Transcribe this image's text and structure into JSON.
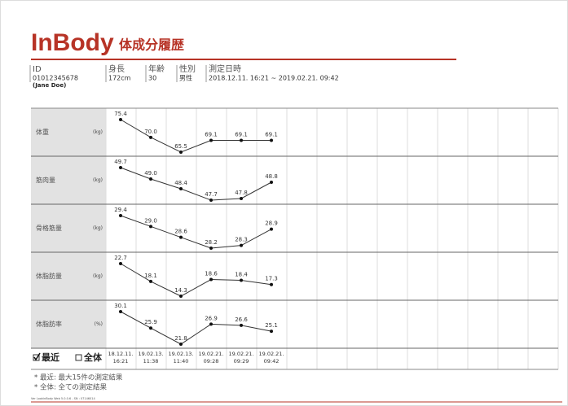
{
  "header": {
    "brand": "InBody",
    "title": "体成分履歴"
  },
  "info": [
    {
      "label": "ID",
      "value": "01012345678",
      "extra": "(Jane Doe)"
    },
    {
      "label": "身長",
      "value": "172cm"
    },
    {
      "label": "年齢",
      "value": "30"
    },
    {
      "label": "性別",
      "value": "男性"
    },
    {
      "label": "測定日時",
      "value": "2018.12.11. 16:21 ~ 2019.02.21. 09:42"
    }
  ],
  "rows": [
    {
      "name": "体重",
      "unit": "(kg)",
      "values": [
        75.4,
        70,
        65.5,
        69.1,
        69.1,
        69.1
      ],
      "value_labels": [
        "75.4",
        "70.0",
        "65.5",
        "69.1",
        "69.1",
        "69.1"
      ]
    },
    {
      "name": "筋肉量",
      "unit": "(kg)",
      "values": [
        49.7,
        49,
        48.4,
        47.7,
        47.8,
        48.8
      ],
      "value_labels": [
        "49.7",
        "49.0",
        "48.4",
        "47.7",
        "47.8",
        "48.8"
      ]
    },
    {
      "name": "骨格筋量",
      "unit": "(kg)",
      "values": [
        29.4,
        29,
        28.6,
        28.2,
        28.3,
        28.9
      ],
      "value_labels": [
        "29.4",
        "29.0",
        "28.6",
        "28.2",
        "28.3",
        "28.9"
      ]
    },
    {
      "name": "体脂肪量",
      "unit": "(kg)",
      "values": [
        22.7,
        18.1,
        14.3,
        18.6,
        18.4,
        17.3
      ],
      "value_labels": [
        "22.7",
        "18.1",
        "14.3",
        "18.6",
        "18.4",
        "17.3"
      ]
    },
    {
      "name": "体脂肪率",
      "unit": "(%)",
      "values": [
        30.1,
        25.9,
        21.8,
        26.9,
        26.6,
        25.1
      ],
      "value_labels": [
        "30.1",
        "25.9",
        "21.8",
        "26.9",
        "26.6",
        "25.1"
      ]
    }
  ],
  "filters": [
    {
      "label": "最近",
      "checked": true
    },
    {
      "label": "全体",
      "checked": false
    }
  ],
  "dates": [
    [
      "18.12.11.",
      "16:21"
    ],
    [
      "19.02.13.",
      "11:38"
    ],
    [
      "19.02.13.",
      "11:40"
    ],
    [
      "19.02.21.",
      "09:28"
    ],
    [
      "19.02.21.",
      "09:29"
    ],
    [
      "19.02.21.",
      "09:42"
    ]
  ],
  "notes": [
    "* 最近: 最大15件の測定結果",
    "* 全体: 全ての測定結果"
  ],
  "footer": "Ver LookinBody Web 5.0.0.6 - SN : 07146014"
}
